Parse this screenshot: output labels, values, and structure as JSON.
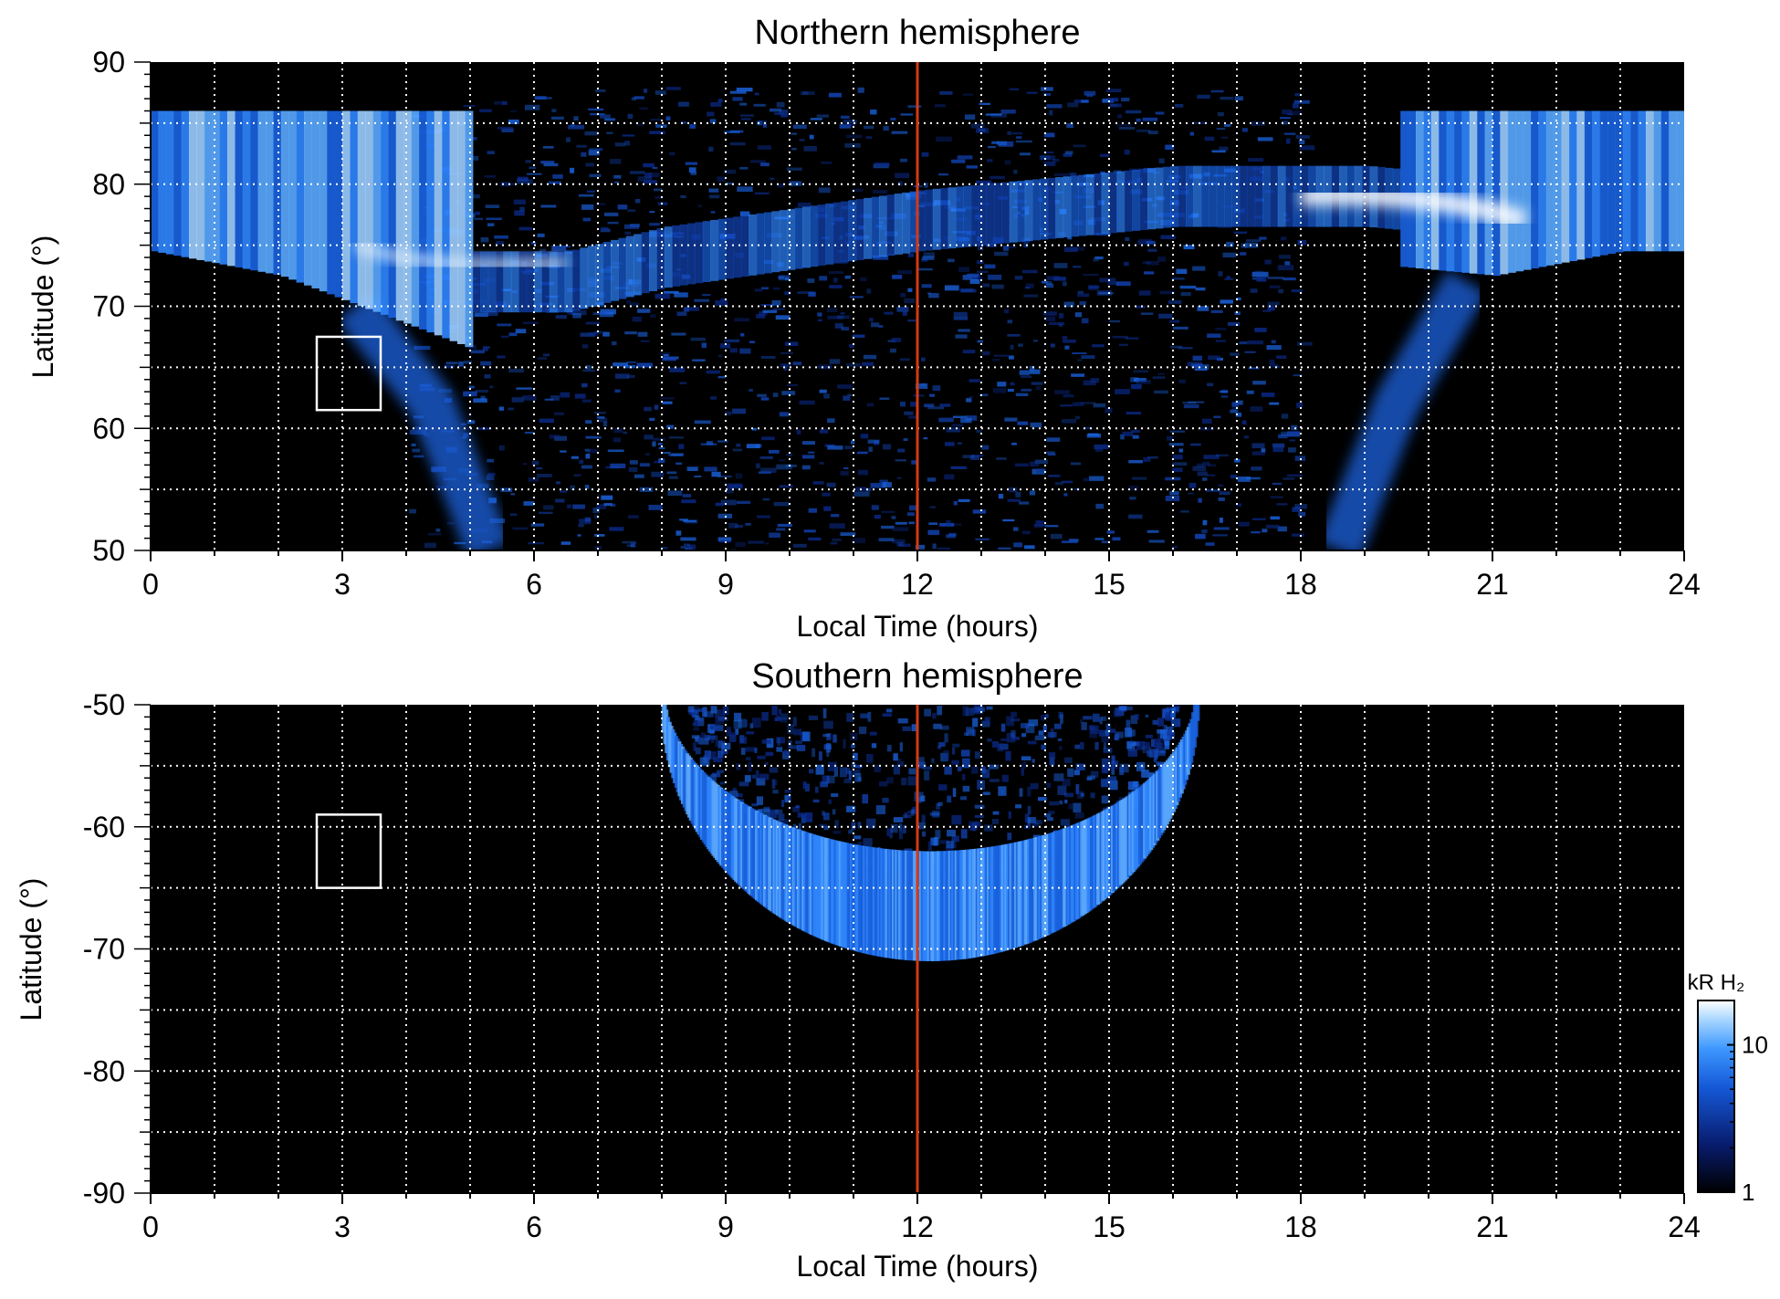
{
  "chart_data": [
    {
      "type": "heatmap",
      "title": "Northern hemisphere",
      "xlabel": "Local Time (hours)",
      "ylabel": "Latitude (°)",
      "xlim": [
        0,
        24
      ],
      "ylim": [
        50,
        90
      ],
      "x_ticks": [
        "0",
        "3",
        "6",
        "9",
        "12",
        "15",
        "18",
        "21",
        "24"
      ],
      "y_ticks": [
        "50",
        "60",
        "70",
        "80",
        "90"
      ],
      "grid": true,
      "grid_x_step_hours": 1,
      "grid_y_step_deg": 5,
      "reference_line": {
        "x": 12,
        "color": "#d23a16"
      },
      "box": {
        "x": [
          2.6,
          3.6
        ],
        "y": [
          61.5,
          67.5
        ]
      },
      "auroral_oval": [
        {
          "lt": 0,
          "lat": 80
        },
        {
          "lt": 2,
          "lat": 78
        },
        {
          "lt": 3,
          "lat": 76
        },
        {
          "lt": 4,
          "lat": 74
        },
        {
          "lt": 5,
          "lat": 72
        },
        {
          "lt": 6.5,
          "lat": 72
        },
        {
          "lt": 8,
          "lat": 74
        },
        {
          "lt": 12,
          "lat": 77
        },
        {
          "lt": 16,
          "lat": 79
        },
        {
          "lt": 19,
          "lat": 79
        },
        {
          "lt": 21,
          "lat": 78
        },
        {
          "lt": 23,
          "lat": 80
        },
        {
          "lt": 24,
          "lat": 80
        }
      ]
    },
    {
      "type": "heatmap",
      "title": "Southern hemisphere",
      "xlabel": "Local Time (hours)",
      "ylabel": "Latitude (°)",
      "xlim": [
        0,
        24
      ],
      "ylim": [
        -90,
        -50
      ],
      "x_ticks": [
        "0",
        "3",
        "6",
        "9",
        "12",
        "15",
        "18",
        "21",
        "24"
      ],
      "y_ticks": [
        "-50",
        "-60",
        "-70",
        "-80",
        "-90"
      ],
      "grid": true,
      "grid_x_step_hours": 1,
      "grid_y_step_deg": 5,
      "reference_line": {
        "x": 12,
        "color": "#d23a16"
      },
      "box": {
        "x": [
          2.6,
          3.6
        ],
        "y": [
          -65,
          -59
        ]
      },
      "auroral_oval": {
        "center_lt": 12.2,
        "center_lat": -50,
        "half_width_hours": 4.2,
        "depth_deg": 21
      }
    }
  ],
  "colorbar": {
    "label": "kR H₂",
    "scale": "log",
    "range": [
      1,
      20
    ],
    "ticks": [
      "1",
      "10"
    ],
    "colors": [
      "#000000",
      "#081c6e",
      "#1559d8",
      "#3e98ff",
      "#a8d6ff",
      "#ffffff"
    ]
  }
}
